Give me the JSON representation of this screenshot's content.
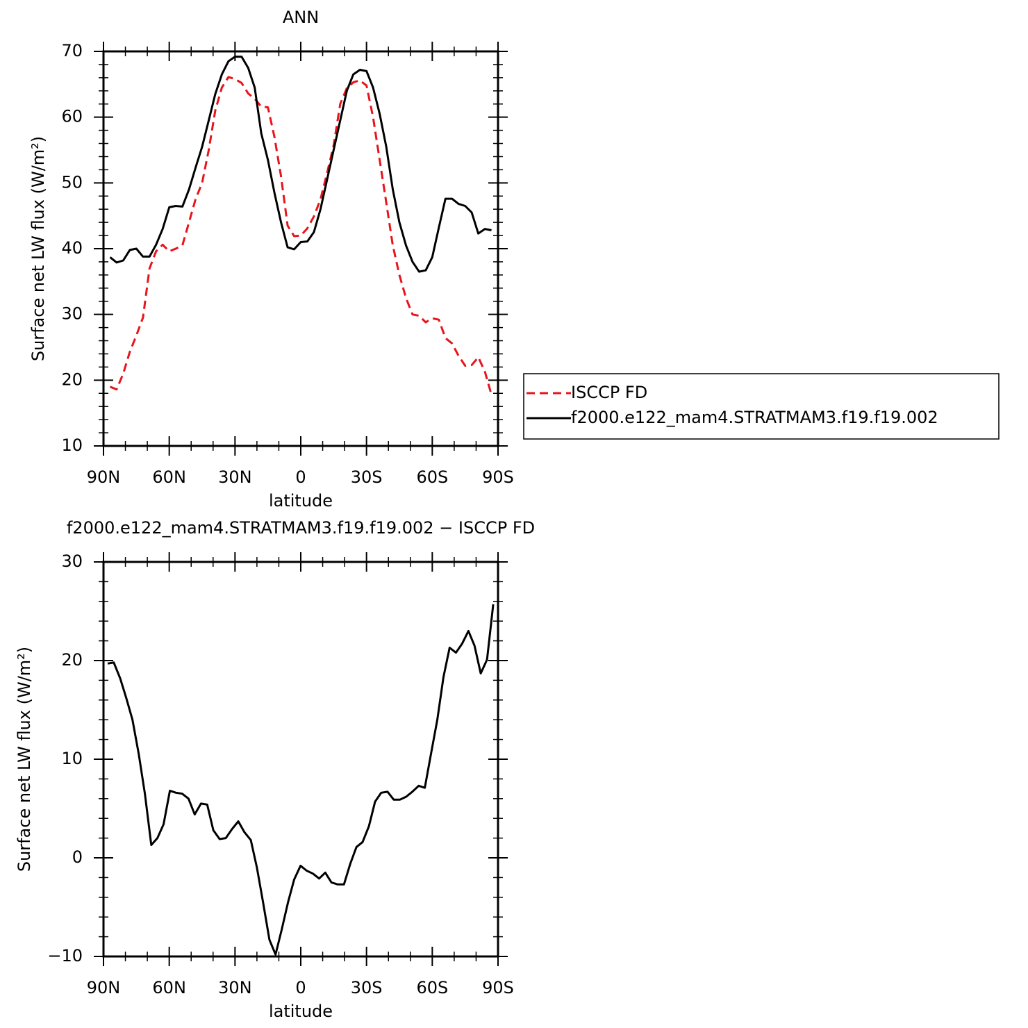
{
  "chart_data": [
    {
      "type": "line",
      "title": "ANN",
      "xlabel": "latitude",
      "ylabel": "Surface net LW flux (W/m²)",
      "x": [
        87,
        84,
        81,
        78,
        75,
        72,
        69,
        66,
        63,
        60,
        57,
        54,
        51,
        48,
        45,
        42,
        39,
        36,
        33,
        30,
        27,
        24,
        21,
        18,
        15,
        12,
        9,
        6,
        3,
        0,
        -3,
        -6,
        -9,
        -12,
        -15,
        -18,
        -21,
        -24,
        -27,
        -30,
        -33,
        -36,
        -39,
        -42,
        -45,
        -48,
        -51,
        -54,
        -57,
        -60,
        -63,
        -66,
        -69,
        -72,
        -75,
        -78,
        -81,
        -84,
        -87
      ],
      "series": [
        {
          "name": "ISCCP FD",
          "color": "#e8141b",
          "style": "dashed",
          "values": [
            19.0,
            18.6,
            21,
            24.3,
            26.8,
            29.5,
            37,
            39.6,
            40.6,
            39.6,
            40,
            40.5,
            44,
            47.5,
            50,
            55,
            61,
            64.5,
            66.1,
            65.8,
            65.2,
            63.6,
            62.8,
            61.6,
            61.5,
            57,
            51,
            43.5,
            41.9,
            42,
            43.1,
            44.9,
            47.5,
            51.5,
            55.7,
            62,
            64.4,
            65.3,
            65.6,
            64.8,
            60,
            53.5,
            47,
            40.5,
            36,
            32.5,
            30,
            29.8,
            28.8,
            29.4,
            29.2,
            26.4,
            25.6,
            23.7,
            22.2,
            22.3,
            23.5,
            21.3,
            17.8
          ]
        },
        {
          "name": "f2000.e122_mam4.STRATMAM3.f19.f19.002",
          "color": "#000000",
          "style": "solid",
          "values": [
            38.7,
            37.9,
            38.2,
            39.8,
            40.0,
            38.8,
            38.8,
            40.6,
            43,
            46.3,
            46.5,
            46.4,
            49,
            52.3,
            55.5,
            59.5,
            63.5,
            66.5,
            68.5,
            69.2,
            69.2,
            67.5,
            64.5,
            57.5,
            53.5,
            48.5,
            44,
            40.2,
            39.9,
            41,
            41.1,
            42.5,
            46,
            50.5,
            55,
            59.5,
            64,
            66.5,
            67.2,
            67,
            64.5,
            60.5,
            55.5,
            49,
            44,
            40.5,
            38,
            36.5,
            36.7,
            38.7,
            43.2,
            47.6,
            47.6,
            46.8,
            46.5,
            45.5,
            42.3,
            43,
            42.8
          ]
        }
      ],
      "xlim": [
        90,
        -90
      ],
      "xticks": [
        {
          "value": 90,
          "label": "90N"
        },
        {
          "value": 60,
          "label": "60N"
        },
        {
          "value": 30,
          "label": "30N"
        },
        0,
        {
          "value": -30,
          "label": "30S"
        },
        {
          "value": -60,
          "label": "60S"
        },
        {
          "value": -90,
          "label": "90S"
        }
      ],
      "ylim": [
        10,
        70
      ],
      "yticks": [
        10,
        20,
        30,
        40,
        50,
        60,
        70
      ],
      "legend": "right"
    },
    {
      "type": "line",
      "title": "f2000.e122_mam4.STRATMAM3.f19.f19.002 − ISCCP FD",
      "xlabel": "latitude",
      "ylabel": "Surface net LW flux (W/m²)",
      "x": [
        88.1,
        85.3,
        82.4,
        79.6,
        76.8,
        73.9,
        71.1,
        68.2,
        65.4,
        62.6,
        59.7,
        56.9,
        54.1,
        51.2,
        48.4,
        45.5,
        42.7,
        39.9,
        37.0,
        34.2,
        31.4,
        28.5,
        25.7,
        22.8,
        20.0,
        17.2,
        14.3,
        11.5,
        8.7,
        5.8,
        3.0,
        0.1,
        -2.7,
        -5.5,
        -8.4,
        -11.2,
        -14.0,
        -16.9,
        -19.7,
        -22.6,
        -25.4,
        -28.2,
        -31.1,
        -33.9,
        -36.7,
        -39.6,
        -42.4,
        -45.3,
        -48.1,
        -50.9,
        -53.8,
        -56.6,
        -59.4,
        -62.3,
        -65.1,
        -67.9,
        -70.8,
        -73.6,
        -76.5,
        -79.3,
        -82.1,
        -85.0,
        -87.8
      ],
      "color": "#000000",
      "style": "solid",
      "values": [
        19.7,
        19.8,
        18.2,
        16.2,
        14,
        10.5,
        6.5,
        1.3,
        2,
        3.4,
        6.8,
        6.6,
        6.5,
        6,
        4.4,
        5.5,
        5.4,
        2.8,
        1.9,
        2,
        2.9,
        3.7,
        2.6,
        1.8,
        -1,
        -4.5,
        -8.3,
        -9.8,
        -7.3,
        -4.5,
        -2.2,
        -0.8,
        -1.3,
        -1.6,
        -2.1,
        -1.5,
        -2.5,
        -2.7,
        -2.7,
        -0.6,
        1.1,
        1.6,
        3.2,
        5.7,
        6.6,
        6.7,
        5.9,
        5.9,
        6.2,
        6.7,
        7.3,
        7.1,
        10.5,
        14,
        18.3,
        21.3,
        20.8,
        21.7,
        23,
        21.5,
        18.7,
        20.1,
        25.7
      ],
      "xlim": [
        90,
        -90
      ],
      "xticks": [
        {
          "value": 90,
          "label": "90N"
        },
        {
          "value": 60,
          "label": "60N"
        },
        {
          "value": 30,
          "label": "30N"
        },
        0,
        {
          "value": -30,
          "label": "30S"
        },
        {
          "value": -60,
          "label": "60S"
        },
        {
          "value": -90,
          "label": "90S"
        }
      ],
      "ylim": [
        -10,
        30
      ],
      "yticks": [
        {
          "value": -10,
          "label": "−10"
        },
        0,
        10,
        20,
        30
      ]
    }
  ]
}
